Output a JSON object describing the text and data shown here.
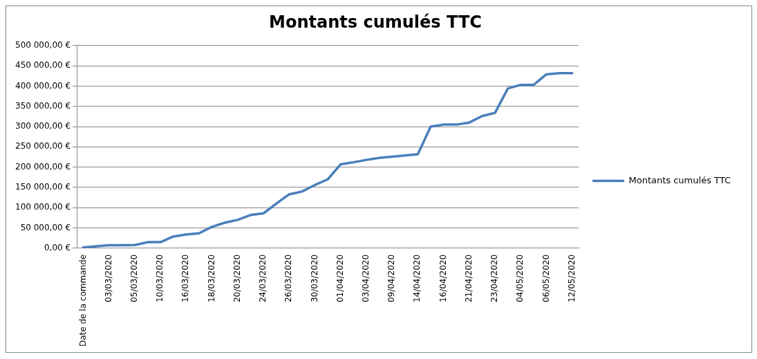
{
  "chart_data": {
    "type": "line",
    "title": "Montants cumulés TTC",
    "categories": [
      "Date de la commande",
      null,
      "03/03/2020",
      null,
      "05/03/2020",
      null,
      "10/03/2020",
      null,
      "16/03/2020",
      null,
      "18/03/2020",
      null,
      "20/03/2020",
      null,
      "24/03/2020",
      null,
      "26/03/2020",
      null,
      "30/03/2020",
      null,
      "01/04/2020",
      null,
      "03/04/2020",
      null,
      "09/04/2020",
      null,
      "14/04/2020",
      null,
      "16/04/2020",
      null,
      "21/04/2020",
      null,
      "23/04/2020",
      null,
      "04/05/2020",
      null,
      "06/05/2020",
      null,
      "12/05/2020"
    ],
    "series": [
      {
        "name": "Montants cumulés TTC",
        "color": "#4a7ebb",
        "values": [
          2000,
          5000,
          7500,
          7500,
          8000,
          15000,
          15000,
          29000,
          34000,
          37000,
          53000,
          63000,
          70000,
          82000,
          86000,
          110000,
          133000,
          140000,
          156000,
          170000,
          207000,
          212000,
          218000,
          223000,
          226000,
          229000,
          232000,
          300000,
          305000,
          305000,
          310000,
          326000,
          334000,
          394000,
          403000,
          403000,
          429000,
          432000,
          432000
        ]
      }
    ],
    "ylim": [
      0,
      500000
    ],
    "yticks": [
      {
        "value": 0,
        "label": "0,00 €"
      },
      {
        "value": 50000,
        "label": "50 000,00 €"
      },
      {
        "value": 100000,
        "label": "100 000,00 €"
      },
      {
        "value": 150000,
        "label": "150 000,00 €"
      },
      {
        "value": 200000,
        "label": "200 000,00 €"
      },
      {
        "value": 250000,
        "label": "250 000,00 €"
      },
      {
        "value": 300000,
        "label": "300 000,00 €"
      },
      {
        "value": 350000,
        "label": "350 000,00 €"
      },
      {
        "value": 400000,
        "label": "400 000,00 €"
      },
      {
        "value": 450000,
        "label": "450 000,00 €"
      },
      {
        "value": 500000,
        "label": "500 000,00 €"
      }
    ],
    "grid": "y",
    "legend": "right",
    "marker": "none",
    "line_style": "solid"
  }
}
